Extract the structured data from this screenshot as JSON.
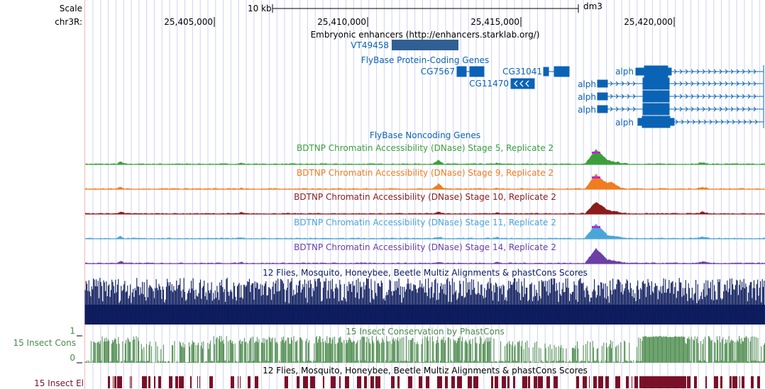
{
  "header": {
    "scale_label": "Scale",
    "chrom_label": "chr3R:",
    "scale_bar_text": "10 kb",
    "assembly": "dm3",
    "positions": [
      "25,405,000",
      "25,410,000",
      "25,415,000",
      "25,420,000"
    ]
  },
  "tracks": {
    "enhancers": {
      "title": "Embryonic enhancers (http://enhancers.starklab.org/)",
      "feature": "VT49458"
    },
    "coding": {
      "title": "FlyBase Protein-Coding Genes",
      "genes": [
        "CG7567",
        "CG31041",
        "CG11470",
        "alph",
        "alph",
        "alph",
        "alph",
        "alph"
      ]
    },
    "noncoding": {
      "title": "FlyBase Noncoding Genes"
    },
    "dnase": [
      {
        "title": "BDTNP Chromatin Accessibility (DNase) Stage 5, Replicate 2",
        "color": "#3ba03b"
      },
      {
        "title": "BDTNP Chromatin Accessibility (DNase) Stage 9, Replicate 2",
        "color": "#f07c1e"
      },
      {
        "title": "BDTNP Chromatin Accessibility (DNase) Stage 10, Replicate 2",
        "color": "#8b1c1c"
      },
      {
        "title": "BDTNP Chromatin Accessibility (DNase) Stage 11, Replicate 2",
        "color": "#4aa6d6"
      },
      {
        "title": "BDTNP Chromatin Accessibility (DNase) Stage 14, Replicate 2",
        "color": "#6b3fa6"
      }
    ],
    "multiz": {
      "title": "12 Flies, Mosquito, Honeybee, Beetle Multiz Alignments & phastCons Scores",
      "color": "#0c1b5c"
    },
    "phastcons": {
      "title": "15 Insect Conservation by PhastCons",
      "side_label": "15 Insect Cons",
      "y_max": "1",
      "y_min": "0",
      "color": "#4a8a4a"
    },
    "elements": {
      "title": "12 Flies, Mosquito, Honeybee, Beetle Multiz Alignments & phastCons Scores",
      "side_label": "15 Insect El",
      "color": "#7a1028"
    }
  },
  "colors": {
    "gene": "#0b63b5",
    "enhancer": "#2f5f93",
    "grid": "#c8cdf0"
  }
}
